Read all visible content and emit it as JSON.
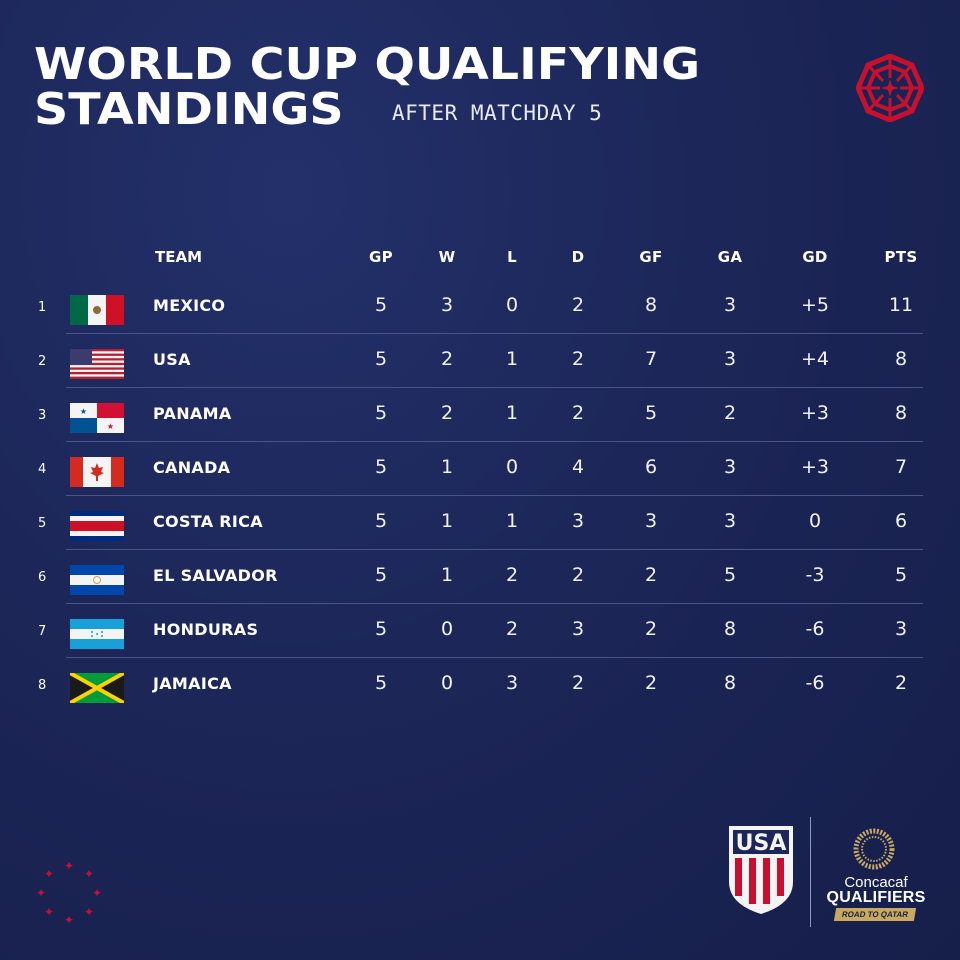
{
  "header": {
    "title_line1": "WORLD CUP QUALIFYING",
    "title_line2": "STANDINGS",
    "subtitle": "AFTER MATCHDAY 5"
  },
  "table": {
    "columns": [
      "TEAM",
      "GP",
      "W",
      "L",
      "D",
      "GF",
      "GA",
      "GD",
      "PTS"
    ],
    "rows": [
      {
        "rank": "1",
        "team": "MEXICO",
        "flag": "mexico-flag-icon",
        "gp": "5",
        "w": "3",
        "l": "0",
        "d": "2",
        "gf": "8",
        "ga": "3",
        "gd": "+5",
        "pts": "11"
      },
      {
        "rank": "2",
        "team": "USA",
        "flag": "usa-flag-icon",
        "gp": "5",
        "w": "2",
        "l": "1",
        "d": "2",
        "gf": "7",
        "ga": "3",
        "gd": "+4",
        "pts": "8"
      },
      {
        "rank": "3",
        "team": "PANAMA",
        "flag": "panama-flag-icon",
        "gp": "5",
        "w": "2",
        "l": "1",
        "d": "2",
        "gf": "5",
        "ga": "2",
        "gd": "+3",
        "pts": "8"
      },
      {
        "rank": "4",
        "team": "CANADA",
        "flag": "canada-flag-icon",
        "gp": "5",
        "w": "1",
        "l": "0",
        "d": "4",
        "gf": "6",
        "ga": "3",
        "gd": "+3",
        "pts": "7"
      },
      {
        "rank": "5",
        "team": "COSTA RICA",
        "flag": "costa-rica-flag-icon",
        "gp": "5",
        "w": "1",
        "l": "1",
        "d": "3",
        "gf": "3",
        "ga": "3",
        "gd": "0",
        "pts": "6"
      },
      {
        "rank": "6",
        "team": "EL SALVADOR",
        "flag": "el-salvador-flag-icon",
        "gp": "5",
        "w": "1",
        "l": "2",
        "d": "2",
        "gf": "2",
        "ga": "5",
        "gd": "-3",
        "pts": "5"
      },
      {
        "rank": "7",
        "team": "HONDURAS",
        "flag": "honduras-flag-icon",
        "gp": "5",
        "w": "0",
        "l": "2",
        "d": "3",
        "gf": "2",
        "ga": "8",
        "gd": "-6",
        "pts": "3"
      },
      {
        "rank": "8",
        "team": "JAMAICA",
        "flag": "jamaica-flag-icon",
        "gp": "5",
        "w": "0",
        "l": "3",
        "d": "2",
        "gf": "2",
        "ga": "8",
        "gd": "-6",
        "pts": "2"
      }
    ]
  },
  "footer": {
    "usa_logo_text": "USA",
    "concacaf_name": "Concacaf",
    "concacaf_qualifiers": "QUALIFIERS",
    "concacaf_road": "ROAD TO QATAR"
  },
  "colors": {
    "background": "#1c2658",
    "accent_red": "#c8102e",
    "divider": "#4b5585",
    "gold": "#c9a960"
  },
  "icons": [
    "badge-icon",
    "stars-decoration-icon",
    "usa-crest-icon",
    "concacaf-ring-icon"
  ]
}
